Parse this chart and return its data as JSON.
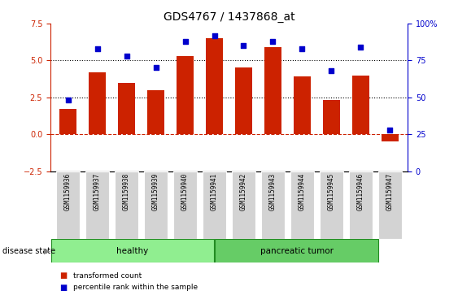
{
  "title": "GDS4767 / 1437868_at",
  "samples": [
    "GSM1159936",
    "GSM1159937",
    "GSM1159938",
    "GSM1159939",
    "GSM1159940",
    "GSM1159941",
    "GSM1159942",
    "GSM1159943",
    "GSM1159944",
    "GSM1159945",
    "GSM1159946",
    "GSM1159947"
  ],
  "bar_values": [
    1.7,
    4.2,
    3.5,
    3.0,
    5.3,
    6.5,
    4.5,
    5.9,
    3.9,
    2.3,
    4.0,
    -0.5
  ],
  "scatter_pct": [
    48,
    83,
    78,
    70,
    88,
    92,
    85,
    88,
    83,
    68,
    84,
    28
  ],
  "bar_color": "#cc2200",
  "scatter_color": "#0000cc",
  "ylim_left": [
    -2.5,
    7.5
  ],
  "ylim_right": [
    0,
    100
  ],
  "yticks_left": [
    -2.5,
    0.0,
    2.5,
    5.0,
    7.5
  ],
  "yticks_right": [
    0,
    25,
    50,
    75,
    100
  ],
  "hlines": [
    2.5,
    5.0
  ],
  "hline_zero_color": "#cc2200",
  "healthy_samples": 6,
  "tumor_samples": 6,
  "healthy_label": "healthy",
  "tumor_label": "pancreatic tumor",
  "disease_state_label": "disease state",
  "legend_bar_label": "transformed count",
  "legend_scatter_label": "percentile rank within the sample",
  "healthy_color": "#90ee90",
  "tumor_color": "#66cc66",
  "sample_box_color": "#d3d3d3",
  "background_color": "#ffffff",
  "title_fontsize": 10,
  "tick_fontsize": 7,
  "label_fontsize": 8
}
